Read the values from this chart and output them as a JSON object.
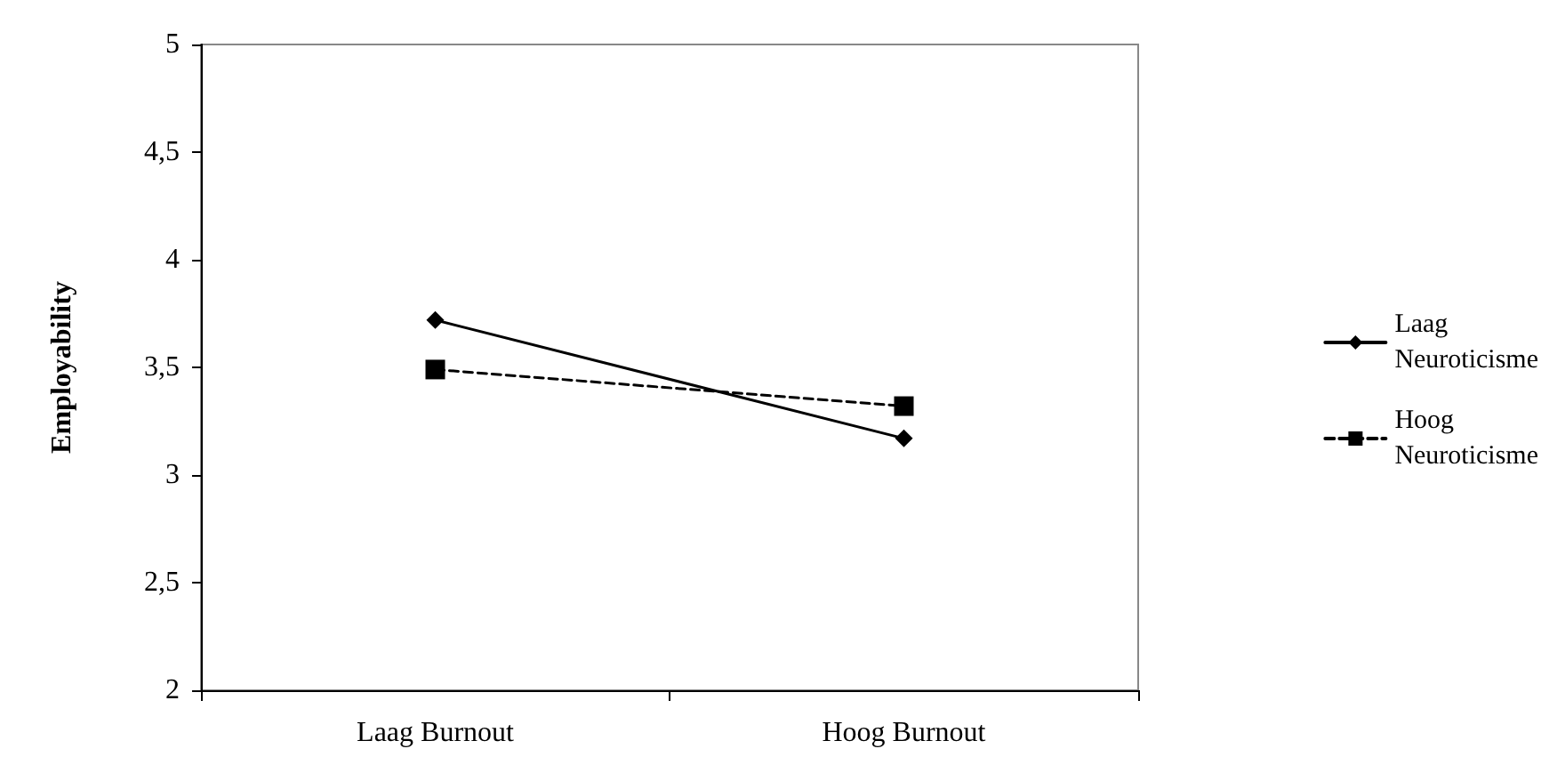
{
  "chart_data": {
    "type": "line",
    "ylabel": "Employability",
    "categories": [
      "Laag Burnout",
      "Hoog Burnout"
    ],
    "series": [
      {
        "name": "Laag Neuroticisme",
        "color": "#000000",
        "marker": "diamond",
        "line_style": "solid",
        "values": [
          3.72,
          3.17
        ]
      },
      {
        "name": "Hoog Neuroticisme",
        "color": "#000000",
        "marker": "square",
        "line_style": "dashed",
        "values": [
          3.49,
          3.32
        ]
      }
    ],
    "ylim": [
      2,
      5
    ],
    "yticks": [
      2,
      {
        "value": 2.5,
        "label": "2,5"
      },
      3,
      {
        "value": 3.5,
        "label": "3,5"
      },
      4,
      {
        "value": 4.5,
        "label": "4,5"
      },
      5
    ],
    "grid": false,
    "legend": "right"
  }
}
